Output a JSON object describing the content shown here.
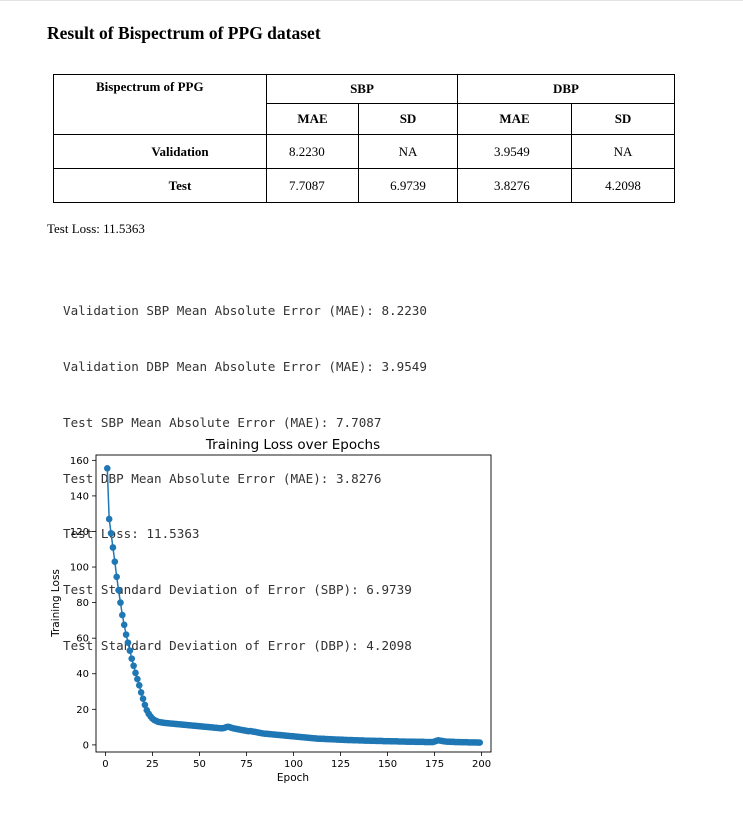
{
  "document": {
    "title": "Result of Bispectrum of PPG dataset",
    "table": {
      "corner_label": "Bispectrum of PPG",
      "groups": [
        "SBP",
        "DBP"
      ],
      "subheaders": [
        "MAE",
        "SD",
        "MAE",
        "SD"
      ],
      "rows": [
        {
          "label": "Validation",
          "values": [
            "8.2230",
            "NA",
            "3.9549",
            "NA"
          ]
        },
        {
          "label": "Test",
          "values": [
            "7.7087",
            "6.9739",
            "3.8276",
            "4.2098"
          ]
        }
      ]
    },
    "test_loss_line": "Test Loss: 11.5363",
    "console_lines": [
      "Validation SBP Mean Absolute Error (MAE): 8.2230",
      "Validation DBP Mean Absolute Error (MAE): 3.9549",
      "Test SBP Mean Absolute Error (MAE): 7.7087",
      "Test DBP Mean Absolute Error (MAE): 3.8276",
      "Test Loss: 11.5363",
      "Test Standard Deviation of Error (SBP): 6.9739",
      "Test Standard Deviation of Error (DBP): 4.2098"
    ]
  },
  "chart_data": {
    "type": "line",
    "title": "Training Loss over Epochs",
    "xlabel": "Epoch",
    "ylabel": "Training Loss",
    "xlim": [
      -5,
      205
    ],
    "ylim": [
      -4,
      163
    ],
    "xticks": [
      0,
      25,
      50,
      75,
      100,
      125,
      150,
      175,
      200
    ],
    "yticks": [
      0,
      20,
      40,
      60,
      80,
      100,
      120,
      140,
      160
    ],
    "grid": false,
    "marker": "circle",
    "color": "#1f77b4",
    "series": [
      {
        "x_start": 1,
        "x_step": 1,
        "values": [
          155.5,
          127.0,
          119.0,
          111.0,
          103.0,
          94.5,
          87.0,
          80.0,
          73.0,
          67.5,
          62.0,
          57.5,
          53.0,
          48.5,
          44.5,
          40.5,
          37.0,
          33.5,
          29.5,
          26.0,
          22.5,
          19.5,
          17.5,
          16.0,
          14.8,
          14.0,
          13.5,
          13.0,
          12.8,
          12.6,
          12.4,
          12.3,
          12.2,
          12.1,
          12.0,
          11.9,
          11.8,
          11.7,
          11.6,
          11.5,
          11.4,
          11.3,
          11.2,
          11.1,
          11.0,
          10.9,
          10.8,
          10.7,
          10.6,
          10.5,
          10.4,
          10.3,
          10.2,
          10.1,
          10.0,
          9.9,
          9.8,
          9.7,
          9.6,
          9.5,
          9.4,
          9.3,
          9.5,
          9.9,
          10.2,
          10.0,
          9.6,
          9.3,
          9.1,
          8.9,
          8.7,
          8.5,
          8.3,
          8.1,
          7.9,
          7.7,
          7.8,
          7.6,
          7.4,
          7.2,
          7.0,
          6.8,
          6.6,
          6.4,
          6.3,
          6.2,
          6.1,
          6.0,
          5.9,
          5.8,
          5.7,
          5.6,
          5.5,
          5.4,
          5.3,
          5.2,
          5.1,
          5.0,
          4.9,
          4.8,
          4.7,
          4.6,
          4.5,
          4.4,
          4.3,
          4.2,
          4.1,
          4.0,
          3.9,
          3.8,
          3.7,
          3.6,
          3.5,
          3.5,
          3.4,
          3.4,
          3.3,
          3.3,
          3.2,
          3.2,
          3.1,
          3.1,
          3.0,
          3.0,
          2.9,
          2.9,
          2.8,
          2.8,
          2.7,
          2.7,
          2.7,
          2.6,
          2.6,
          2.6,
          2.5,
          2.5,
          2.5,
          2.4,
          2.4,
          2.4,
          2.3,
          2.3,
          2.3,
          2.2,
          2.2,
          2.2,
          2.2,
          2.1,
          2.1,
          2.1,
          2.1,
          2.0,
          2.0,
          2.0,
          2.0,
          1.9,
          1.9,
          1.9,
          1.9,
          1.8,
          1.8,
          1.8,
          1.8,
          1.8,
          1.7,
          1.7,
          1.7,
          1.7,
          1.7,
          1.6,
          1.6,
          1.6,
          1.6,
          1.6,
          1.9,
          2.3,
          2.6,
          2.4,
          2.2,
          2.0,
          1.9,
          1.8,
          1.8,
          1.7,
          1.7,
          1.6,
          1.6,
          1.6,
          1.5,
          1.5,
          1.5,
          1.5,
          1.4,
          1.4,
          1.4,
          1.4,
          1.4,
          1.3,
          1.3
        ]
      }
    ]
  }
}
